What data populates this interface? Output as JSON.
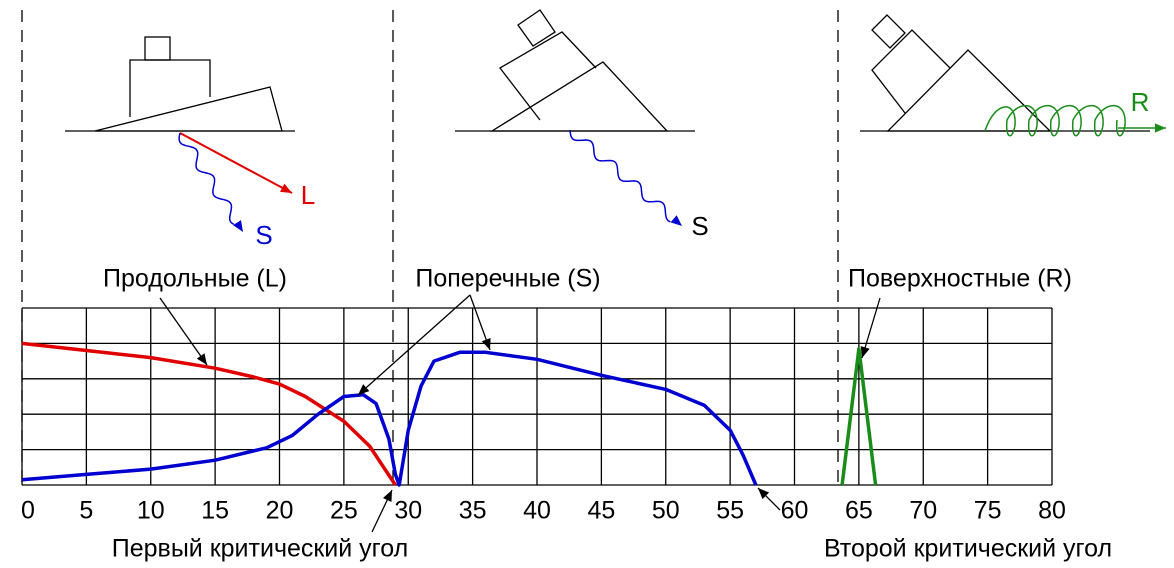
{
  "chart_data": {
    "type": "line",
    "xlim": [
      0,
      80
    ],
    "xticks": [
      0,
      5,
      10,
      15,
      20,
      25,
      30,
      35,
      40,
      45,
      50,
      55,
      60,
      65,
      70,
      75,
      80
    ],
    "ylim": [
      0,
      5
    ],
    "yticks": [
      0,
      1,
      2,
      3,
      4,
      5
    ],
    "grid": true,
    "series": [
      {
        "name": "Продольные (L)",
        "color": "#e00000",
        "x": [
          0,
          5,
          10,
          15,
          18,
          20,
          22,
          25,
          27,
          29
        ],
        "values": [
          4.0,
          3.8,
          3.6,
          3.3,
          3.05,
          2.85,
          2.5,
          1.8,
          1.1,
          0
        ]
      },
      {
        "name": "Поперечные (S)",
        "color": "#0000d0",
        "x": [
          0,
          5,
          10,
          15,
          19,
          21,
          23,
          25,
          26.5,
          27.5,
          28.5,
          29,
          29.3,
          30,
          31,
          32,
          34,
          36,
          40,
          45,
          50,
          53,
          55,
          56,
          57
        ],
        "values": [
          0.15,
          0.3,
          0.45,
          0.7,
          1.05,
          1.4,
          2.0,
          2.5,
          2.55,
          2.3,
          1.3,
          0.3,
          0,
          1.55,
          2.8,
          3.5,
          3.75,
          3.75,
          3.55,
          3.1,
          2.7,
          2.25,
          1.55,
          0.85,
          0
        ]
      },
      {
        "name": "Поверхностные (R)",
        "color": "#1a8c1a",
        "x": [
          63.7,
          65,
          66.3
        ],
        "values": [
          0,
          3.85,
          0
        ]
      }
    ],
    "annotations": [
      "Первый критический угол",
      "Второй критический угол"
    ],
    "wave_labels": [
      "L",
      "S",
      "S",
      "R"
    ]
  }
}
